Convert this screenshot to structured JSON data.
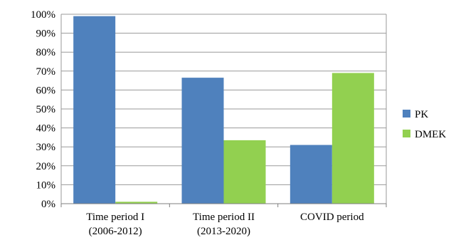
{
  "chart_data": {
    "type": "bar",
    "title": "",
    "xlabel": "",
    "ylabel": "",
    "ylim": [
      0,
      100
    ],
    "y_ticks": [
      "0%",
      "10%",
      "20%",
      "30%",
      "40%",
      "50%",
      "60%",
      "70%",
      "80%",
      "90%",
      "100%"
    ],
    "y_tick_values": [
      0,
      10,
      20,
      30,
      40,
      50,
      60,
      70,
      80,
      90,
      100
    ],
    "grid": "horizontal",
    "legend_position": "right",
    "categories": [
      [
        "Time period I",
        "(2006-2012)"
      ],
      [
        "Time period II",
        "(2013-2020)"
      ],
      [
        "COVID period"
      ]
    ],
    "series": [
      {
        "name": "PK",
        "color": "#4F81BD",
        "values": [
          99,
          66.5,
          31
        ]
      },
      {
        "name": "DMEK",
        "color": "#92D050",
        "values": [
          1,
          33.5,
          69
        ]
      }
    ]
  }
}
